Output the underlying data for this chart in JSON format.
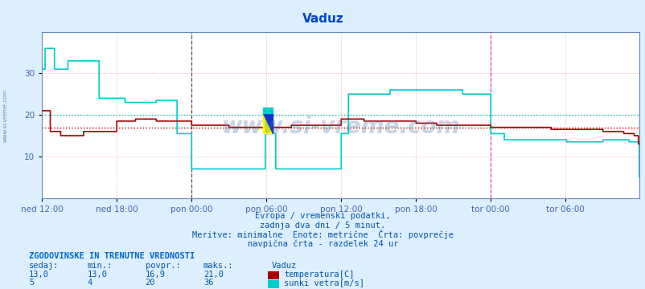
{
  "title": "Vaduz",
  "title_color": "#0044cc",
  "bg_color": "#ddeeff",
  "plot_bg_color": "#ffffff",
  "grid_color": "#ffaaaa",
  "grid_style": ":",
  "tick_color": "#4466aa",
  "text_color": "#0055aa",
  "temp_color": "#aa0000",
  "wind_color": "#00cccc",
  "vline1_color": "#888888",
  "vline2_color": "#cc44cc",
  "ymin": 0,
  "ymax": 40,
  "yticks": [
    10,
    20,
    30
  ],
  "n_points": 576,
  "temp_avg": 16.9,
  "wind_avg": 20.0,
  "subtitle1": "Evropa / vremenski podatki,",
  "subtitle2": "zadnja dva dni / 5 minut.",
  "subtitle3": "Meritve: minimalne  Enote: metrične  Črta: povprečje",
  "subtitle4": "navpična črta - razdelek 24 ur",
  "stats_header": "ZGODOVINSKE IN TRENUTNE VREDNOSTI",
  "col_sedaj": "sedaj:",
  "col_min": "min.:",
  "col_povpr": "povpr.:",
  "col_maks": "maks.:",
  "location": "Vaduz",
  "temp_sedaj": "13,0",
  "temp_min": "13,0",
  "temp_povpr": "16,9",
  "temp_maks": "21,0",
  "wind_sedaj": "5",
  "wind_min": "4",
  "wind_povpr": "20",
  "wind_maks": "36",
  "temp_label": "temperatura[C]",
  "wind_label": "sunki vetra[m/s]",
  "xtick_labels": [
    "ned 12:00",
    "ned 18:00",
    "pon 00:00",
    "pon 06:00",
    "pon 12:00",
    "pon 18:00",
    "tor 00:00",
    "tor 06:00"
  ],
  "watermark": "www.si-vreme.com",
  "watermark_color": "#4477aa",
  "watermark_alpha": 0.3,
  "left_label": "www.si-vreme.com"
}
